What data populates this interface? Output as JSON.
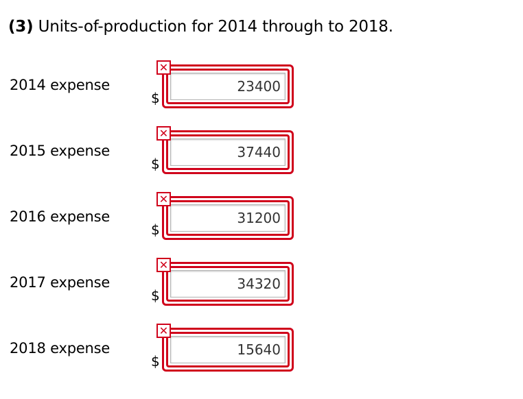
{
  "heading": {
    "number": "(3)",
    "text": "Units-of-production for 2014 through to 2018."
  },
  "currency_symbol": "$",
  "error_icon": "x-mark",
  "accent_color": "#d0021b",
  "rows": [
    {
      "label": "2014 expense",
      "value": "23400"
    },
    {
      "label": "2015 expense",
      "value": "37440"
    },
    {
      "label": "2016 expense",
      "value": "31200"
    },
    {
      "label": "2017 expense",
      "value": "34320"
    },
    {
      "label": "2018 expense",
      "value": "15640"
    }
  ]
}
